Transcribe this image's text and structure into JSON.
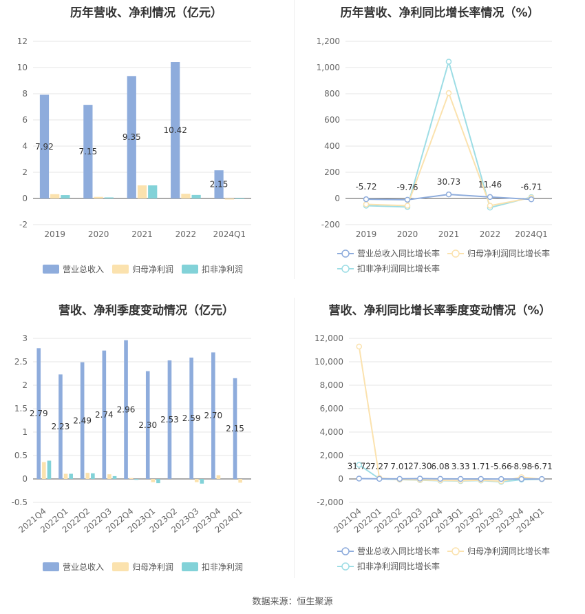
{
  "footer": "数据来源：恒生聚源",
  "colors": {
    "revenue": "#8eacdc",
    "net_profit": "#fbe2ae",
    "deducted_profit": "#82d2d8",
    "deducted_line": "#9ddde5",
    "grid": "#e6e6e6",
    "axis_text": "#666666"
  },
  "chart_data": [
    {
      "id": "c1",
      "type": "bar",
      "title": "历年营收、净利情况（亿元）",
      "categories": [
        "2019",
        "2020",
        "2021",
        "2022",
        "2024Q1"
      ],
      "ylim": [
        -2,
        12
      ],
      "yticks": [
        "-2",
        "0",
        "2",
        "4",
        "6",
        "8",
        "10",
        "12"
      ],
      "series": [
        {
          "name": "营业总收入",
          "values": [
            7.92,
            7.15,
            9.35,
            10.42,
            2.15
          ],
          "labels": [
            "7.92",
            "7.15",
            "9.35",
            "10.42",
            "2.15"
          ]
        },
        {
          "name": "归母净利润",
          "values": [
            0.33,
            0.12,
            1.0,
            0.36,
            -0.08
          ]
        },
        {
          "name": "扣非净利润",
          "values": [
            0.26,
            0.08,
            1.0,
            0.27,
            -0.05
          ]
        }
      ],
      "grid": true,
      "legend": "bottom"
    },
    {
      "id": "c2",
      "type": "line",
      "title": "历年营收、净利同比增长率情况（%）",
      "categories": [
        "2019",
        "2020",
        "2021",
        "2022",
        "2024Q1"
      ],
      "ylim": [
        -200,
        1200
      ],
      "yticks": [
        "-200",
        "0",
        "200",
        "400",
        "600",
        "800",
        "1,000",
        "1,200"
      ],
      "series": [
        {
          "name": "营业总收入同比增长率",
          "values": [
            -5.72,
            -9.76,
            30.73,
            11.46,
            -6.71
          ],
          "labels": [
            "-5.72",
            "-9.76",
            "30.73",
            "11.46",
            "-6.71"
          ]
        },
        {
          "name": "归母净利润同比增长率",
          "values": [
            -45,
            -55,
            805,
            -55,
            5
          ]
        },
        {
          "name": "扣非净利润同比增长率",
          "values": [
            -55,
            -65,
            1045,
            -70,
            10
          ]
        }
      ],
      "grid": true,
      "legend": "bottom"
    },
    {
      "id": "c3",
      "type": "bar",
      "title": "营收、净利季度变动情况（亿元）",
      "categories": [
        "2021Q4",
        "2022Q1",
        "2022Q2",
        "2022Q3",
        "2022Q4",
        "2023Q1",
        "2023Q2",
        "2023Q3",
        "2023Q4",
        "2024Q1"
      ],
      "ylim": [
        -0.5,
        3
      ],
      "yticks": [
        "-0.5",
        "0",
        "0.5",
        "1",
        "1.5",
        "2",
        "2.5",
        "3"
      ],
      "series": [
        {
          "name": "营业总收入",
          "values": [
            2.79,
            2.23,
            2.49,
            2.74,
            2.96,
            2.3,
            2.53,
            2.59,
            2.7,
            2.15
          ],
          "labels": [
            "2.79",
            "2.23",
            "2.49",
            "2.74",
            "2.96",
            "2.30",
            "2.53",
            "2.59",
            "2.70",
            "2.15"
          ]
        },
        {
          "name": "归母净利润",
          "values": [
            0.36,
            0.11,
            0.13,
            0.1,
            0.02,
            -0.07,
            0.0,
            -0.07,
            0.08,
            -0.08
          ]
        },
        {
          "name": "扣非净利润",
          "values": [
            0.39,
            0.11,
            0.12,
            0.06,
            -0.02,
            -0.09,
            0.0,
            -0.1,
            0.0,
            0.0
          ]
        }
      ],
      "grid": true,
      "legend": "bottom"
    },
    {
      "id": "c4",
      "type": "line",
      "title": "营收、净利同比增长率季度变动情况（%）",
      "categories": [
        "2021Q4",
        "2022Q1",
        "2022Q2",
        "2022Q3",
        "2022Q4",
        "2023Q1",
        "2023Q2",
        "2023Q3",
        "2023Q4",
        "2024Q1"
      ],
      "ylim": [
        -2000,
        12000
      ],
      "yticks": [
        "-2,000",
        "0",
        "2,000",
        "4,000",
        "6,000",
        "8,000",
        "10,000",
        "12,000"
      ],
      "series": [
        {
          "name": "营业总收入同比增长率",
          "values": [
            31.72,
            7.27,
            7.01,
            27.3,
            6.08,
            3.33,
            1.71,
            -5.66,
            -8.98,
            -6.71
          ],
          "labels": [
            "31.72",
            "7.27",
            "7.01",
            "27.30",
            "6.08",
            "3.33",
            "1.71",
            "-5.66",
            "-8.98",
            "-6.71"
          ]
        },
        {
          "name": "归母净利润同比增长率",
          "values": [
            11300,
            80,
            -50,
            -80,
            -120,
            -150,
            -100,
            -200,
            150,
            -20
          ]
        },
        {
          "name": "扣非净利润同比增长率",
          "values": [
            1200,
            20,
            -60,
            -100,
            -150,
            -180,
            -130,
            -250,
            -60,
            -30
          ]
        }
      ],
      "grid": true,
      "legend": "bottom"
    }
  ]
}
